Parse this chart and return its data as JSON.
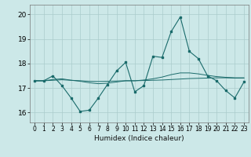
{
  "xlabel": "Humidex (Indice chaleur)",
  "ylabel": "",
  "background_color": "#cce8e8",
  "grid_color": "#aacccc",
  "line_color": "#1a6b6b",
  "xlim": [
    -0.5,
    23.5
  ],
  "ylim": [
    15.6,
    20.4
  ],
  "yticks": [
    16,
    17,
    18,
    19,
    20
  ],
  "xticks": [
    0,
    1,
    2,
    3,
    4,
    5,
    6,
    7,
    8,
    9,
    10,
    11,
    12,
    13,
    14,
    15,
    16,
    17,
    18,
    19,
    20,
    21,
    22,
    23
  ],
  "series1_x": [
    0,
    1,
    2,
    3,
    4,
    5,
    6,
    7,
    8,
    9,
    10,
    11,
    12,
    13,
    14,
    15,
    16,
    17,
    18,
    19,
    20,
    21,
    22,
    23
  ],
  "series1_y": [
    17.3,
    17.3,
    17.5,
    17.1,
    16.6,
    16.05,
    16.1,
    16.6,
    17.15,
    17.7,
    18.05,
    16.85,
    17.1,
    18.3,
    18.25,
    19.3,
    19.9,
    18.5,
    18.2,
    17.5,
    17.3,
    16.9,
    16.6,
    17.25
  ],
  "series2_x": [
    0,
    1,
    2,
    3,
    4,
    5,
    6,
    7,
    8,
    9,
    10,
    11,
    12,
    13,
    14,
    15,
    16,
    17,
    18,
    19,
    20,
    21,
    22,
    23
  ],
  "series2_y": [
    17.3,
    17.3,
    17.32,
    17.34,
    17.32,
    17.3,
    17.28,
    17.27,
    17.28,
    17.29,
    17.3,
    17.3,
    17.31,
    17.32,
    17.33,
    17.35,
    17.37,
    17.39,
    17.4,
    17.41,
    17.42,
    17.42,
    17.41,
    17.41
  ],
  "series3_x": [
    0,
    1,
    2,
    3,
    4,
    5,
    6,
    7,
    8,
    9,
    10,
    11,
    12,
    13,
    14,
    15,
    16,
    17,
    18,
    19,
    20,
    21,
    22,
    23
  ],
  "series3_y": [
    17.3,
    17.3,
    17.35,
    17.38,
    17.32,
    17.28,
    17.22,
    17.18,
    17.2,
    17.25,
    17.3,
    17.3,
    17.33,
    17.38,
    17.45,
    17.55,
    17.62,
    17.62,
    17.58,
    17.52,
    17.47,
    17.44,
    17.42,
    17.42
  ]
}
